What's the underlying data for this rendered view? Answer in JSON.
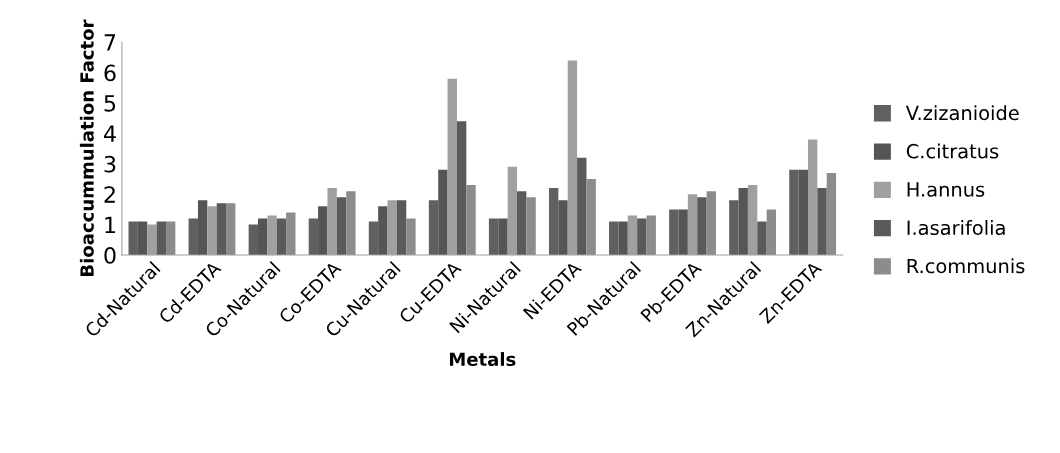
{
  "chart_data": {
    "type": "bar",
    "xlabel": "Metals",
    "ylabel": "Bioaccummulation Factor",
    "categories": [
      "Cd-Natural",
      "Cd-EDTA",
      "Co-Natural",
      "Co-EDTA",
      "Cu-Natural",
      "Cu-EDTA",
      "Ni-Natural",
      "Ni-EDTA",
      "Pb-Natural",
      "Pb-EDTA",
      "Zn-Natural",
      "Zn-EDTA"
    ],
    "series": [
      {
        "name": "V.zizanioide",
        "color": "#606060",
        "values": [
          1.1,
          1.2,
          1.0,
          1.2,
          1.1,
          1.8,
          1.2,
          2.2,
          1.1,
          1.5,
          1.8,
          2.8
        ]
      },
      {
        "name": "C.citratus",
        "color": "#555555",
        "values": [
          1.1,
          1.8,
          1.2,
          1.6,
          1.6,
          2.8,
          1.2,
          1.8,
          1.1,
          1.5,
          2.2,
          2.8
        ]
      },
      {
        "name": "H.annus",
        "color": "#a0a0a0",
        "values": [
          1.0,
          1.6,
          1.3,
          2.2,
          1.8,
          5.8,
          2.9,
          6.4,
          1.3,
          2.0,
          2.3,
          3.8
        ]
      },
      {
        "name": "I.asarifolia",
        "color": "#5a5a5a",
        "values": [
          1.1,
          1.7,
          1.2,
          1.9,
          1.8,
          4.4,
          2.1,
          3.2,
          1.2,
          1.9,
          1.1,
          2.2
        ]
      },
      {
        "name": "R.communis",
        "color": "#8c8c8c",
        "values": [
          1.1,
          1.7,
          1.4,
          2.1,
          1.2,
          2.3,
          1.9,
          2.5,
          1.3,
          2.1,
          1.5,
          2.7
        ]
      }
    ],
    "ylim": [
      0,
      7
    ],
    "yticks": [
      0,
      1,
      2,
      3,
      4,
      5,
      6,
      7
    ],
    "legend": "right",
    "grid": false
  }
}
